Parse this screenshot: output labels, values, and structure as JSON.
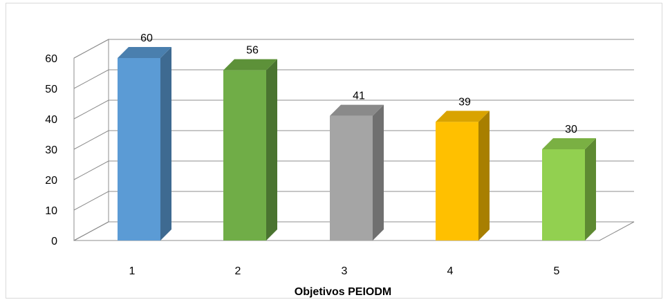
{
  "chart_data": {
    "type": "bar",
    "style": "3d-column",
    "title": "",
    "xlabel": "Objetivos PEIODM",
    "ylabel": "",
    "categories": [
      "1",
      "2",
      "3",
      "4",
      "5"
    ],
    "values": [
      60,
      56,
      41,
      39,
      30
    ],
    "data_labels": [
      "60",
      "56",
      "41",
      "39",
      "30"
    ],
    "ylim": [
      0,
      60
    ],
    "yticks": [
      "0",
      "10",
      "20",
      "30",
      "40",
      "50",
      "60"
    ],
    "grid": true,
    "legend": "none",
    "colors": [
      {
        "front": "#5b9bd5",
        "side": "#3e6a91",
        "top": "#4a7fae"
      },
      {
        "front": "#70ad47",
        "side": "#4a7430",
        "top": "#5d9139"
      },
      {
        "front": "#a5a5a5",
        "side": "#707070",
        "top": "#8a8a8a"
      },
      {
        "front": "#ffc000",
        "side": "#a87f00",
        "top": "#d9a300"
      },
      {
        "front": "#92d050",
        "side": "#5e8a32",
        "top": "#7ab043"
      }
    ],
    "gridline_color": "#8c8c8c"
  }
}
